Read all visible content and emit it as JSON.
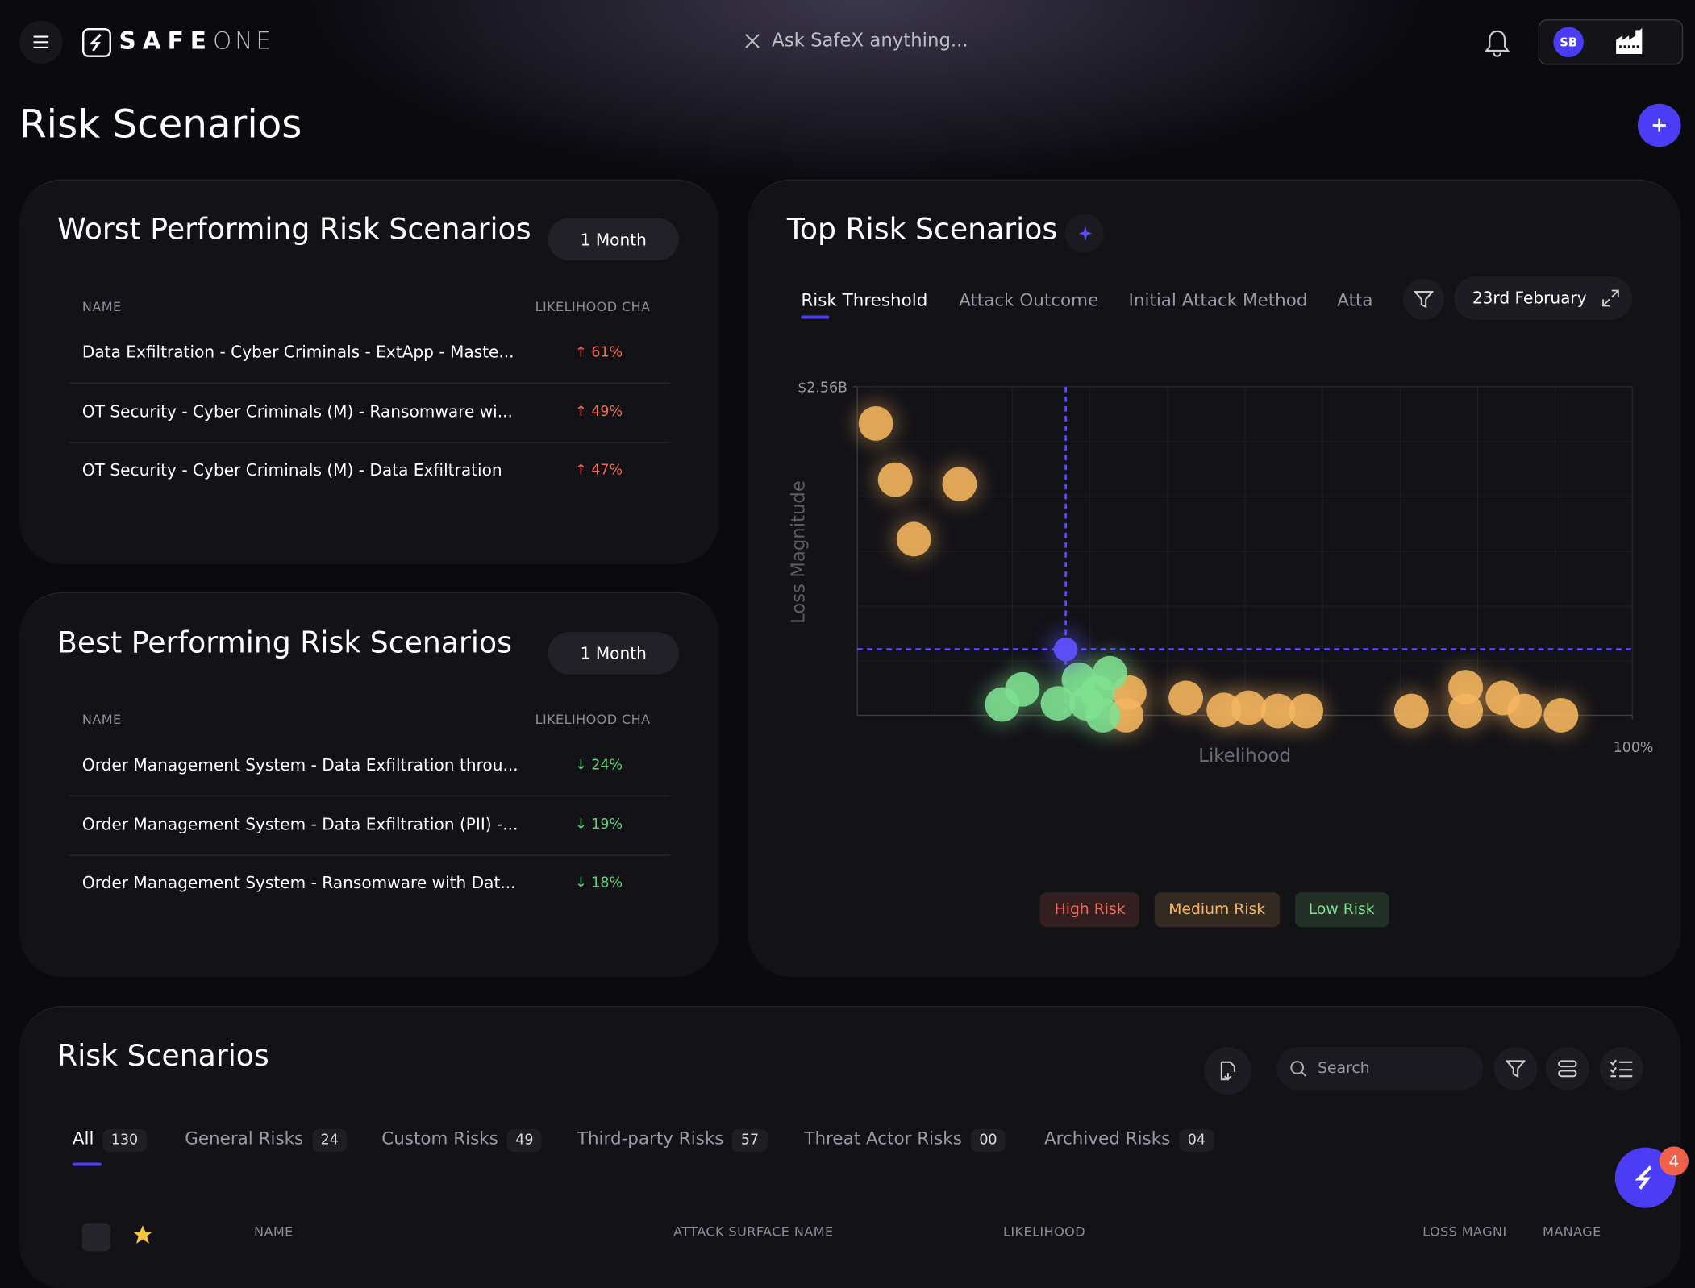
{
  "header": {
    "logo_primary": "SAFE",
    "logo_secondary": "ONE",
    "search_placeholder": "Ask SafeX anything...",
    "avatar": "SB"
  },
  "page": {
    "title": "Risk Scenarios"
  },
  "worst_panel": {
    "title": "Worst Performing Risk Scenarios",
    "period": "1 Month",
    "columns": [
      "NAME",
      "LIKELIHOOD CHA"
    ],
    "change_color": "#f26b55",
    "rows": [
      {
        "name": "Data Exfiltration - Cyber Criminals - ExtApp - Maste...",
        "change": "61%"
      },
      {
        "name": "OT Security - Cyber Criminals (M) - Ransomware wi...",
        "change": "49%"
      },
      {
        "name": "OT Security - Cyber Criminals (M) - Data Exfiltration",
        "change": "47%"
      }
    ]
  },
  "best_panel": {
    "title": "Best Performing Risk Scenarios",
    "period": "1 Month",
    "columns": [
      "NAME",
      "LIKELIHOOD CHA"
    ],
    "change_color": "#5fd37a",
    "rows": [
      {
        "name": "Order Management System - Data Exfiltration throu...",
        "change": "24%"
      },
      {
        "name": "Order Management System - Data Exfiltration (PII) -...",
        "change": "19%"
      },
      {
        "name": "Order Management System - Ransomware with Dat...",
        "change": "18%"
      }
    ]
  },
  "top_risk": {
    "title": "Top Risk Scenarios",
    "tabs": [
      "Risk Threshold",
      "Attack Outcome",
      "Initial Attack Method",
      "Atta"
    ],
    "date": "23rd February",
    "chart": {
      "type": "scatter",
      "x_label": "Likelihood",
      "y_label": "Loss Magnitude",
      "xlim": [
        0,
        100
      ],
      "ylim": [
        0,
        2560000000
      ],
      "xticks": [
        {
          "value": 100,
          "label": "100%"
        }
      ],
      "yticks": [
        {
          "value": 2560000000,
          "label": "$2.56B"
        }
      ],
      "grid": true,
      "threshold": {
        "x": 26.9,
        "y": 514000000,
        "color": "#5b4ef5"
      },
      "series": [
        {
          "name": "High Risk",
          "color": "#f06a58",
          "x": [],
          "values": []
        },
        {
          "name": "Medium Risk",
          "color": "#f4b55e",
          "x": [
            2.4,
            4.9,
            13.2,
            7.3,
            35.1,
            34.7,
            42.4,
            47.3,
            50.5,
            54.3,
            57.9,
            71.5,
            78.5,
            78.5,
            83.3,
            86.1,
            90.8
          ],
          "values": [
            2274000000,
            1836000000,
            1802000000,
            1373000000,
            177000000,
            0,
            135000000,
            42000000,
            59000000,
            34000000,
            34000000,
            34000000,
            219000000,
            34000000,
            135000000,
            34000000,
            0
          ]
        },
        {
          "name": "Low Risk",
          "color": "#7ee08f",
          "x": [
            18.7,
            21.3,
            25.9,
            28.6,
            32.6,
            29.6,
            31.7,
            31.0
          ],
          "values": [
            84000000,
            202000000,
            93000000,
            278000000,
            328000000,
            93000000,
            0,
            177000000
          ]
        }
      ]
    }
  },
  "risk_table": {
    "title": "Risk Scenarios",
    "search_placeholder": "Search",
    "tabs": [
      {
        "label": "All",
        "count": 130
      },
      {
        "label": "General Risks",
        "count": 24
      },
      {
        "label": "Custom Risks",
        "count": 49
      },
      {
        "label": "Third-party Risks",
        "count": 57
      },
      {
        "label": "Threat Actor Risks",
        "count": "00"
      },
      {
        "label": "Archived Risks",
        "count": "04"
      }
    ],
    "columns": [
      "NAME",
      "ATTACK SURFACE NAME",
      "LIKELIHOOD",
      "LOSS MAGNI",
      "MANAGE"
    ]
  },
  "chat": {
    "badge": 4
  }
}
